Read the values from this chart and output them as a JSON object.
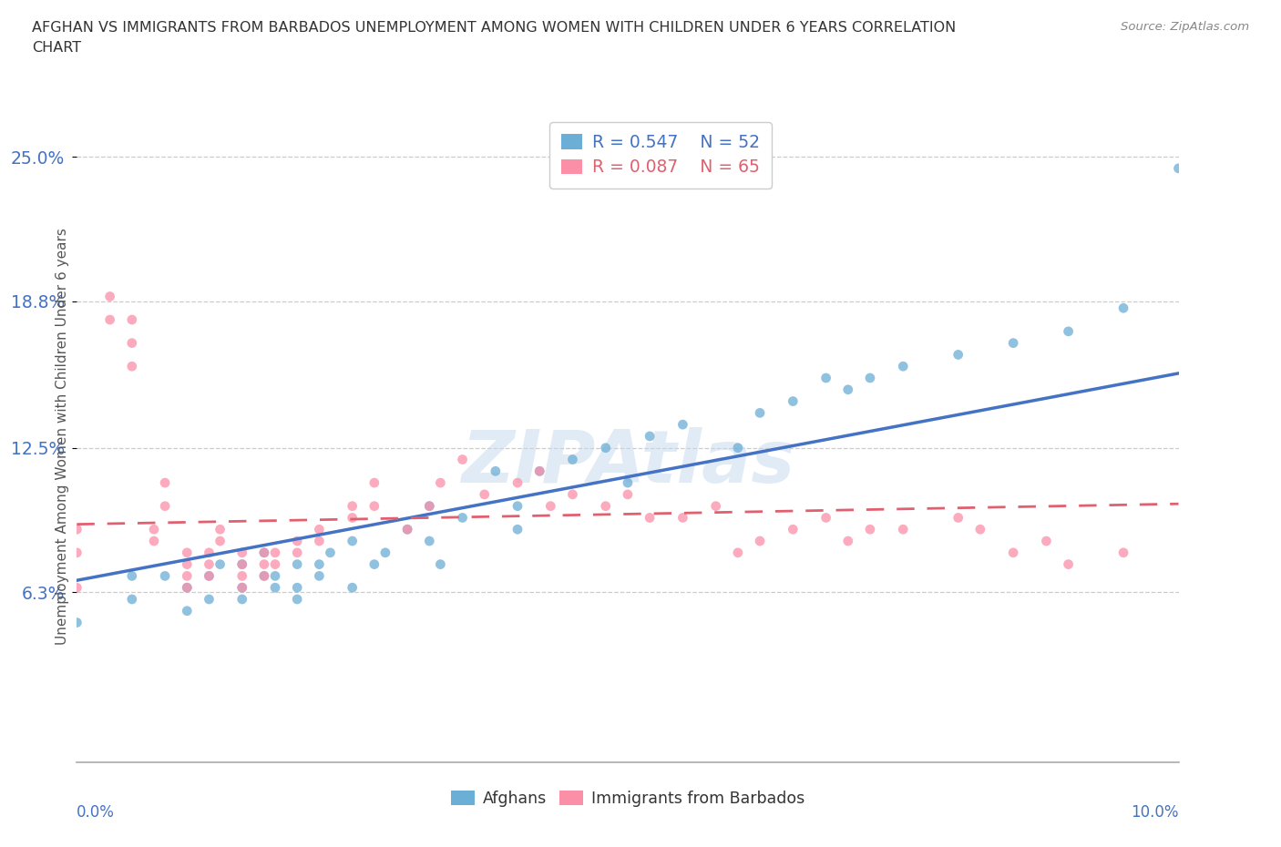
{
  "title_line1": "AFGHAN VS IMMIGRANTS FROM BARBADOS UNEMPLOYMENT AMONG WOMEN WITH CHILDREN UNDER 6 YEARS CORRELATION",
  "title_line2": "CHART",
  "source": "Source: ZipAtlas.com",
  "xlim": [
    0.0,
    0.1
  ],
  "ylim": [
    -0.01,
    0.27
  ],
  "ytick_vals": [
    0.063,
    0.125,
    0.188,
    0.25
  ],
  "ytick_labels": [
    "6.3%",
    "12.5%",
    "18.8%",
    "25.0%"
  ],
  "afghan_color": "#6baed6",
  "barbados_color": "#fc8fa8",
  "afghan_line_color": "#4472C4",
  "barbados_line_color": "#e06070",
  "afghan_R": 0.547,
  "afghan_N": 52,
  "barbados_R": 0.087,
  "barbados_N": 65,
  "ylabel": "Unemployment Among Women with Children Under 6 years",
  "watermark": "ZIPAtlas",
  "afghans_x": [
    0.0,
    0.005,
    0.005,
    0.008,
    0.01,
    0.01,
    0.012,
    0.012,
    0.013,
    0.015,
    0.015,
    0.015,
    0.017,
    0.017,
    0.018,
    0.018,
    0.02,
    0.02,
    0.02,
    0.022,
    0.022,
    0.023,
    0.025,
    0.025,
    0.027,
    0.028,
    0.03,
    0.032,
    0.032,
    0.033,
    0.035,
    0.038,
    0.04,
    0.04,
    0.042,
    0.045,
    0.048,
    0.05,
    0.052,
    0.055,
    0.06,
    0.062,
    0.065,
    0.068,
    0.07,
    0.072,
    0.075,
    0.08,
    0.085,
    0.09,
    0.095,
    0.1
  ],
  "afghans_y": [
    0.05,
    0.06,
    0.07,
    0.07,
    0.065,
    0.055,
    0.06,
    0.07,
    0.075,
    0.06,
    0.065,
    0.075,
    0.07,
    0.08,
    0.065,
    0.07,
    0.075,
    0.065,
    0.06,
    0.07,
    0.075,
    0.08,
    0.065,
    0.085,
    0.075,
    0.08,
    0.09,
    0.1,
    0.085,
    0.075,
    0.095,
    0.115,
    0.1,
    0.09,
    0.115,
    0.12,
    0.125,
    0.11,
    0.13,
    0.135,
    0.125,
    0.14,
    0.145,
    0.155,
    0.15,
    0.155,
    0.16,
    0.165,
    0.17,
    0.175,
    0.185,
    0.245
  ],
  "barbados_x": [
    0.0,
    0.0,
    0.0,
    0.003,
    0.003,
    0.005,
    0.005,
    0.005,
    0.007,
    0.007,
    0.008,
    0.008,
    0.01,
    0.01,
    0.01,
    0.01,
    0.012,
    0.012,
    0.012,
    0.013,
    0.013,
    0.015,
    0.015,
    0.015,
    0.015,
    0.017,
    0.017,
    0.017,
    0.018,
    0.018,
    0.02,
    0.02,
    0.022,
    0.022,
    0.025,
    0.025,
    0.027,
    0.027,
    0.03,
    0.032,
    0.033,
    0.035,
    0.037,
    0.04,
    0.042,
    0.043,
    0.045,
    0.048,
    0.05,
    0.052,
    0.055,
    0.058,
    0.06,
    0.062,
    0.065,
    0.068,
    0.07,
    0.072,
    0.075,
    0.08,
    0.082,
    0.085,
    0.088,
    0.09,
    0.095
  ],
  "barbados_y": [
    0.065,
    0.08,
    0.09,
    0.18,
    0.19,
    0.16,
    0.17,
    0.18,
    0.085,
    0.09,
    0.1,
    0.11,
    0.065,
    0.07,
    0.075,
    0.08,
    0.07,
    0.075,
    0.08,
    0.085,
    0.09,
    0.065,
    0.07,
    0.075,
    0.08,
    0.07,
    0.075,
    0.08,
    0.075,
    0.08,
    0.08,
    0.085,
    0.085,
    0.09,
    0.095,
    0.1,
    0.1,
    0.11,
    0.09,
    0.1,
    0.11,
    0.12,
    0.105,
    0.11,
    0.115,
    0.1,
    0.105,
    0.1,
    0.105,
    0.095,
    0.095,
    0.1,
    0.08,
    0.085,
    0.09,
    0.095,
    0.085,
    0.09,
    0.09,
    0.095,
    0.09,
    0.08,
    0.085,
    0.075,
    0.08
  ]
}
